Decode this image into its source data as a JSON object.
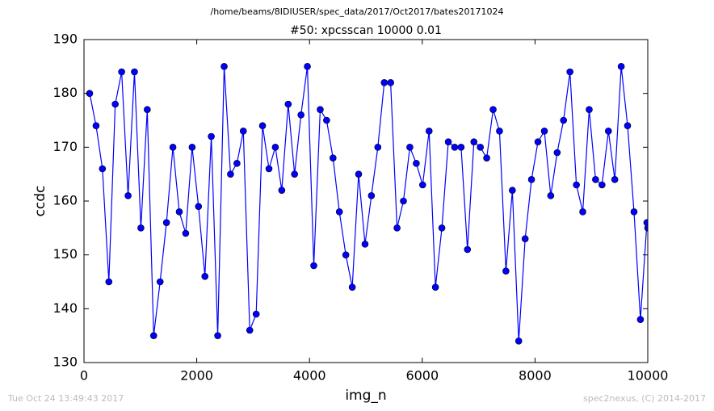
{
  "chart_data": {
    "type": "line",
    "suptitle": "/home/beams/8IDIUSER/spec_data/2017/Oct2017/bates20171024",
    "title": "#50: xpcsscan 10000 0.01",
    "xlabel": "img_n",
    "ylabel": "ccdc",
    "footer_left": "Tue Oct 24 13:49:43 2017",
    "footer_right": "spec2nexus, (C) 2014-2017",
    "x": [
      100,
      214,
      327,
      441,
      554,
      668,
      782,
      895,
      1009,
      1122,
      1236,
      1350,
      1463,
      1577,
      1690,
      1804,
      1918,
      2031,
      2145,
      2258,
      2372,
      2486,
      2599,
      2713,
      2826,
      2940,
      3054,
      3167,
      3281,
      3394,
      3508,
      3622,
      3735,
      3849,
      3962,
      4076,
      4190,
      4303,
      4417,
      4530,
      4644,
      4758,
      4871,
      4985,
      5098,
      5212,
      5326,
      5439,
      5553,
      5666,
      5780,
      5894,
      6007,
      6121,
      6234,
      6348,
      6462,
      6575,
      6689,
      6802,
      6916,
      7030,
      7143,
      7257,
      7370,
      7484,
      7598,
      7711,
      7825,
      7938,
      8052,
      8166,
      8279,
      8393,
      8506,
      8620,
      8734,
      8847,
      8961,
      9074,
      9188,
      9302,
      9415,
      9529,
      9642,
      9756,
      9870,
      9985,
      10000
    ],
    "series": [
      {
        "name": "ccdc",
        "color": "#0000ff",
        "values": [
          180,
          174,
          166,
          145,
          178,
          184,
          161,
          184,
          155,
          177,
          135,
          145,
          156,
          170,
          158,
          154,
          170,
          159,
          146,
          172,
          135,
          185,
          165,
          167,
          173,
          136,
          139,
          174,
          166,
          170,
          162,
          178,
          165,
          176,
          185,
          148,
          177,
          175,
          168,
          158,
          150,
          144,
          165,
          152,
          161,
          170,
          182,
          182,
          155,
          160,
          170,
          167,
          163,
          173,
          144,
          155,
          171,
          170,
          170,
          151,
          171,
          170,
          168,
          177,
          173,
          147,
          162,
          134,
          153,
          164,
          171,
          173,
          161,
          169,
          175,
          184,
          163,
          158,
          177,
          164,
          163,
          173,
          164,
          185,
          174,
          158,
          138,
          156,
          155
        ]
      }
    ],
    "xlim": [
      0,
      10000
    ],
    "xticks": [
      0,
      2000,
      4000,
      6000,
      8000,
      10000
    ],
    "ylim": [
      130,
      190
    ],
    "yticks": [
      130,
      140,
      150,
      160,
      170,
      180,
      190
    ]
  }
}
